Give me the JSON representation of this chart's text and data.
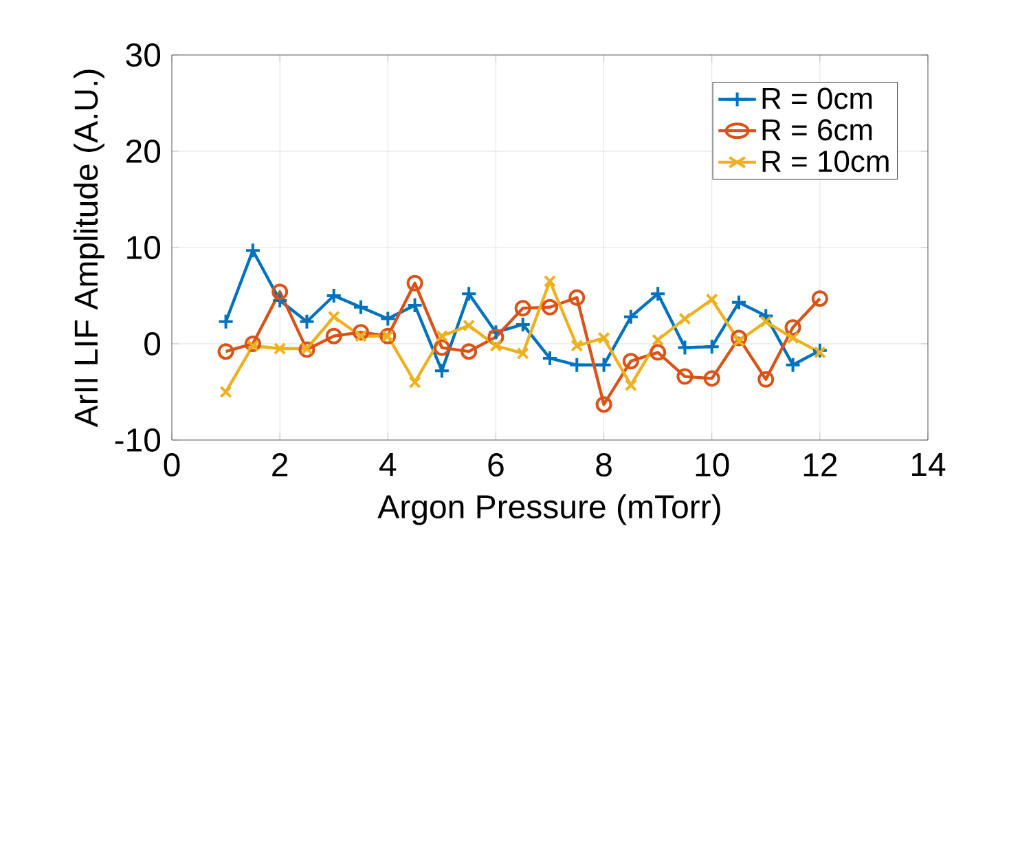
{
  "chart_data": {
    "type": "line",
    "xlabel": "Argon Pressure (mTorr)",
    "ylabel": "ArII LIF Amplitude (A.U.)",
    "x": [
      1,
      1.5,
      2,
      2.5,
      3,
      3.5,
      4,
      4.5,
      5,
      5.5,
      6,
      6.5,
      7,
      7.5,
      8,
      8.5,
      9,
      9.5,
      10,
      10.5,
      11,
      11.5,
      12
    ],
    "series": [
      {
        "name": "R = 0cm",
        "color": "#0072bd",
        "marker": "plus",
        "values": [
          2.3,
          9.7,
          4.5,
          2.3,
          5,
          3.8,
          2.6,
          4,
          -2.8,
          5.2,
          1.2,
          2,
          -1.5,
          -2.2,
          -2.2,
          2.8,
          5.2,
          -0.4,
          -0.3,
          4.3,
          2.9,
          -2.2,
          -0.7
        ]
      },
      {
        "name": "R = 6cm",
        "color": "#d95319",
        "marker": "circle",
        "values": [
          -0.8,
          0,
          5.4,
          -0.6,
          0.8,
          1.2,
          0.8,
          6.3,
          -0.4,
          -0.8,
          0.7,
          3.7,
          3.8,
          4.8,
          -6.3,
          -1.8,
          -0.9,
          -3.4,
          -3.6,
          0.6,
          -3.7,
          1.7,
          4.7
        ]
      },
      {
        "name": "R = 10cm",
        "color": "#edb120",
        "marker": "cross",
        "values": [
          -5,
          -0.2,
          -0.5,
          -0.5,
          2.8,
          0.8,
          0.8,
          -4,
          0.8,
          1.9,
          -0.2,
          -1,
          6.5,
          -0.2,
          0.6,
          -4.3,
          0.4,
          2.6,
          4.6,
          0.3,
          2.3,
          0.6,
          -0.9
        ]
      }
    ],
    "xlim": [
      0,
      14
    ],
    "xticks": [
      0,
      2,
      4,
      6,
      8,
      10,
      12,
      14
    ],
    "ylim": [
      -10,
      30
    ],
    "yticks": [
      -10,
      0,
      10,
      20,
      30
    ],
    "grid": true,
    "legend": "top right",
    "line_style": "solid"
  }
}
